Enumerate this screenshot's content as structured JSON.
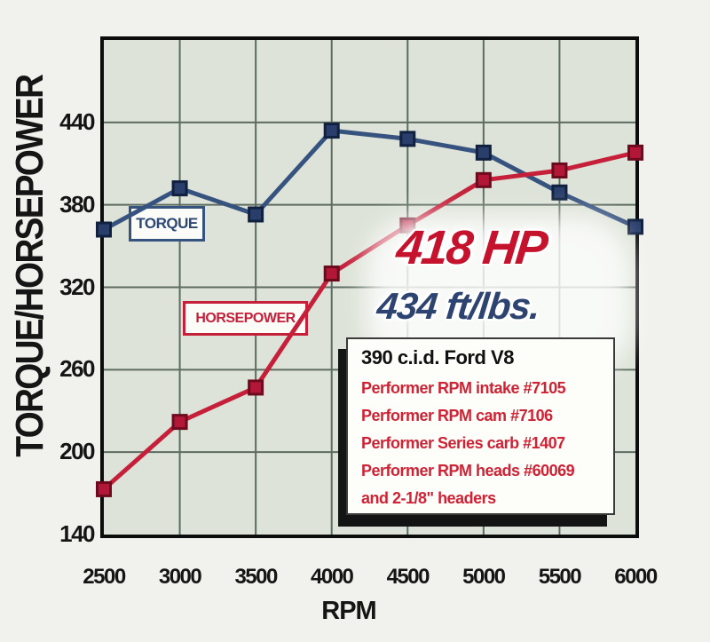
{
  "chart_data": {
    "type": "line",
    "x": [
      2500,
      3000,
      3500,
      4000,
      4500,
      5000,
      5500,
      6000
    ],
    "y_ticks": [
      440,
      380,
      320,
      260,
      200,
      140
    ],
    "xlim": [
      2500,
      6000
    ],
    "ylim": [
      140,
      500
    ],
    "grid": true,
    "xlabel": "RPM",
    "ylabel": "TORQUE/HORSEPOWER",
    "series": [
      {
        "name": "TORQUE",
        "values": [
          362,
          392,
          373,
          434,
          428,
          418,
          389,
          364
        ],
        "line_color": "#36527f",
        "marker_color": "#2a3e6b",
        "marker_edge": "#10203f",
        "peak_label": "434 ft/lbs."
      },
      {
        "name": "HORSEPOWER",
        "values": [
          173,
          222,
          247,
          330,
          365,
          398,
          405,
          418
        ],
        "line_color": "#c51f3a",
        "marker_color": "#b21737",
        "marker_edge": "#6d0a1e",
        "peak_label": "418 HP"
      }
    ],
    "annotations": [
      {
        "text": "418 HP",
        "color": "#c5122d"
      },
      {
        "text": "434 ft/lbs.",
        "color": "#2e4470"
      }
    ]
  },
  "info_box": {
    "title": "390 c.i.d. Ford V8",
    "lines": [
      "Performer RPM intake #7105",
      "Performer RPM cam #7106",
      "Performer Series carb #1407",
      "Performer RPM heads #60069",
      "and 2-1/8\" headers"
    ]
  },
  "colors": {
    "page_bg": "#f1f1ee",
    "plot_bg": "#dde3d8",
    "grid": "#5d6b60",
    "axis_border": "#0c0c0c",
    "torque": "#36527f",
    "horsepower": "#c51f3a",
    "hp_callout": "#c5122d",
    "tq_callout": "#2e4470",
    "info_text": "#cf2335"
  }
}
